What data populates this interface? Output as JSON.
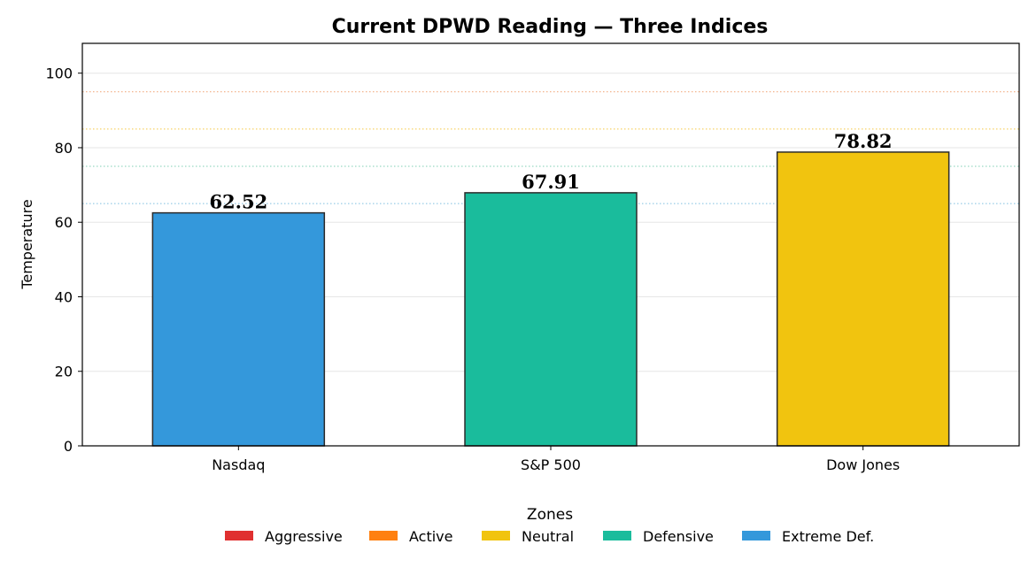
{
  "chart_data": {
    "type": "bar",
    "title": "Current DPWD Reading — Three Indices",
    "xlabel": "",
    "ylabel": "Temperature",
    "categories": [
      "Nasdaq",
      "S&P 500",
      "Dow Jones"
    ],
    "values": [
      62.52,
      67.91,
      78.82
    ],
    "value_labels": [
      "62.52",
      "67.91",
      "78.82"
    ],
    "bar_colors": [
      "#3498db",
      "#1abc9c",
      "#f1c40f"
    ],
    "ylim": [
      0,
      108
    ],
    "yticks": [
      0,
      20,
      40,
      60,
      80,
      100
    ],
    "grid": true,
    "threshold_lines": [
      {
        "value": 95,
        "color": "#f0a070"
      },
      {
        "value": 85,
        "color": "#f5c842"
      },
      {
        "value": 75,
        "color": "#7fcfb5"
      },
      {
        "value": 65,
        "color": "#7fbfdf"
      }
    ],
    "legend": {
      "title": "Zones",
      "placement": "bottom-center",
      "items": [
        {
          "label": "Aggressive",
          "color": "#e03030"
        },
        {
          "label": "Active",
          "color": "#ff8010"
        },
        {
          "label": "Neutral",
          "color": "#f1c40f"
        },
        {
          "label": "Defensive",
          "color": "#1abc9c"
        },
        {
          "label": "Extreme Def.",
          "color": "#3498db"
        }
      ]
    }
  }
}
